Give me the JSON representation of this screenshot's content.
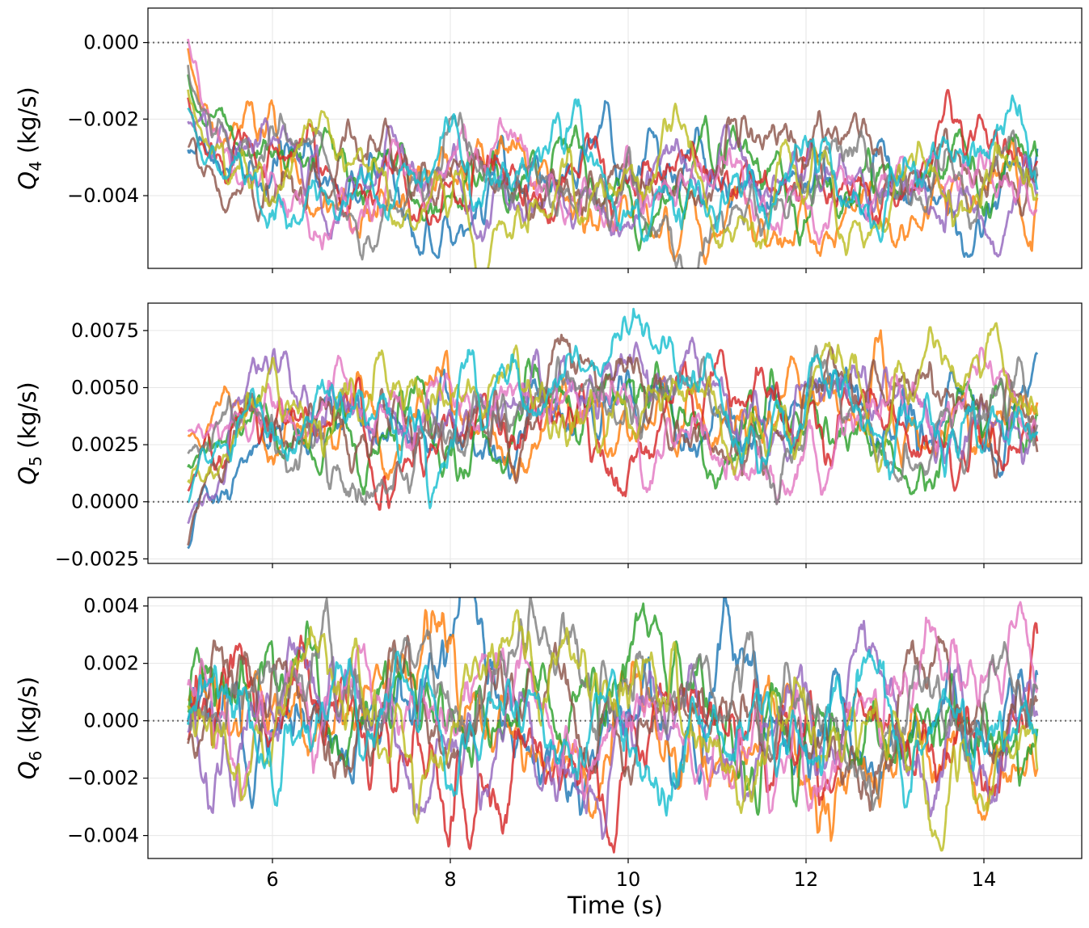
{
  "chart_data": [
    {
      "type": "line",
      "ylabel_var": "Q",
      "ylabel_sub": "4",
      "ylabel_unit": " (kg/s)",
      "ylim": [
        -0.0059,
        0.0009
      ],
      "yticks": [
        0.0,
        -0.002,
        -0.004
      ],
      "ytick_labels": [
        "0.000",
        "−0.002",
        "−0.004"
      ],
      "xlim": [
        4.6,
        15.1
      ],
      "xticks": [
        6,
        8,
        10,
        12,
        14
      ],
      "reference_line": 0.0,
      "num_series": 10,
      "t_start": 5.05,
      "t_end": 14.6,
      "start_range": [
        -0.0028,
        0.0006
      ],
      "steady_mean": -0.0036,
      "fluctuation_std": 0.00075,
      "settle_time_s": 0.25
    },
    {
      "type": "line",
      "ylabel_var": "Q",
      "ylabel_sub": "5",
      "ylabel_unit": " (kg/s)",
      "ylim": [
        -0.0027,
        0.0087
      ],
      "yticks": [
        0.0075,
        0.005,
        0.0025,
        0.0,
        -0.0025
      ],
      "ytick_labels": [
        "0.0075",
        "0.0050",
        "0.0025",
        "0.0000",
        "−0.0025"
      ],
      "xlim": [
        4.6,
        15.1
      ],
      "xticks": [
        6,
        8,
        10,
        12,
        14
      ],
      "reference_line": 0.0,
      "num_series": 10,
      "t_start": 5.05,
      "t_end": 14.6,
      "start_range": [
        -0.0022,
        0.0039
      ],
      "steady_mean": 0.0037,
      "fluctuation_std": 0.0014,
      "settle_time_s": 0.4
    },
    {
      "type": "line",
      "xlabel": "Time (s)",
      "ylabel_var": "Q",
      "ylabel_sub": "6",
      "ylabel_unit": " (kg/s)",
      "ylim": [
        -0.0048,
        0.0043
      ],
      "yticks": [
        0.004,
        0.002,
        0.0,
        -0.002,
        -0.004
      ],
      "ytick_labels": [
        "0.004",
        "0.002",
        "0.000",
        "−0.002",
        "−0.004"
      ],
      "xlim": [
        4.6,
        15.1
      ],
      "xticks": [
        6,
        8,
        10,
        12,
        14
      ],
      "xtick_labels": [
        "6",
        "8",
        "10",
        "12",
        "14"
      ],
      "reference_line": 0.0,
      "num_series": 10,
      "t_start": 5.05,
      "t_end": 14.6,
      "start_range": [
        -0.0016,
        0.0018
      ],
      "steady_mean": 0.0,
      "fluctuation_std": 0.0015,
      "settle_time_s": 0.0
    }
  ],
  "colors": [
    "#1f77b4",
    "#ff7f0e",
    "#2ca02c",
    "#d62728",
    "#9467bd",
    "#8c564b",
    "#e377c2",
    "#7f7f7f",
    "#bcbd22",
    "#17becf"
  ]
}
